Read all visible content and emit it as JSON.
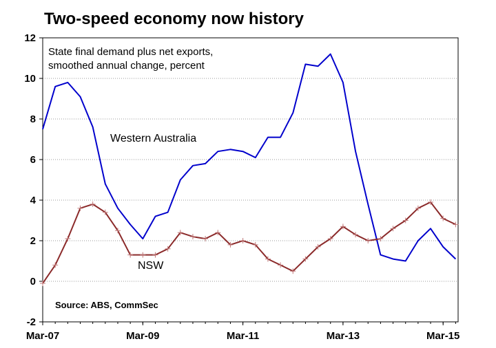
{
  "chart_data": {
    "type": "line",
    "title": "Two-speed economy now history",
    "subtitle_lines": [
      "State final demand plus net exports,",
      "smoothed annual change, percent"
    ],
    "source": "Source: ABS, CommSec",
    "ylim": [
      -2,
      12
    ],
    "yticks": [
      -2,
      0,
      2,
      4,
      6,
      8,
      10,
      12
    ],
    "xlim": [
      2007.0,
      2015.3
    ],
    "xticks": [
      {
        "label": "Mar-07",
        "value": 2007.0
      },
      {
        "label": "Mar-09",
        "value": 2009.0
      },
      {
        "label": "Mar-11",
        "value": 2011.0
      },
      {
        "label": "Mar-13",
        "value": 2013.0
      },
      {
        "label": "Mar-15",
        "value": 2015.0
      }
    ],
    "grid": true,
    "series": [
      {
        "name": "Western Australia",
        "color": "#0000cc",
        "markers": false,
        "x": [
          2007.0,
          2007.25,
          2007.5,
          2007.75,
          2008.0,
          2008.25,
          2008.5,
          2008.75,
          2009.0,
          2009.25,
          2009.5,
          2009.75,
          2010.0,
          2010.25,
          2010.5,
          2010.75,
          2011.0,
          2011.25,
          2011.5,
          2011.75,
          2012.0,
          2012.25,
          2012.5,
          2012.75,
          2013.0,
          2013.25,
          2013.5,
          2013.75,
          2014.0,
          2014.25,
          2014.5,
          2014.75,
          2015.0,
          2015.25
        ],
        "values": [
          7.5,
          9.6,
          9.8,
          9.1,
          7.6,
          4.8,
          3.6,
          2.8,
          2.1,
          3.2,
          3.4,
          5.0,
          5.7,
          5.8,
          6.4,
          6.5,
          6.4,
          6.1,
          7.1,
          7.1,
          8.3,
          10.7,
          10.6,
          11.2,
          9.8,
          6.4,
          3.8,
          1.3,
          1.1,
          1.0,
          2.0,
          2.6,
          1.7,
          1.1
        ]
      },
      {
        "name": "NSW",
        "color": "#8b2a2a",
        "markers": true,
        "x": [
          2007.0,
          2007.25,
          2007.5,
          2007.75,
          2008.0,
          2008.25,
          2008.5,
          2008.75,
          2009.0,
          2009.25,
          2009.5,
          2009.75,
          2010.0,
          2010.25,
          2010.5,
          2010.75,
          2011.0,
          2011.25,
          2011.5,
          2011.75,
          2012.0,
          2012.25,
          2012.5,
          2012.75,
          2013.0,
          2013.25,
          2013.5,
          2013.75,
          2014.0,
          2014.25,
          2014.5,
          2014.75,
          2015.0,
          2015.25
        ],
        "values": [
          -0.1,
          0.8,
          2.1,
          3.6,
          3.8,
          3.4,
          2.5,
          1.3,
          1.3,
          1.3,
          1.6,
          2.4,
          2.2,
          2.1,
          2.4,
          1.8,
          2.0,
          1.8,
          1.1,
          0.8,
          0.5,
          1.1,
          1.7,
          2.1,
          2.7,
          2.3,
          2.0,
          2.1,
          2.6,
          3.0,
          3.6,
          3.9,
          3.1,
          2.8
        ]
      }
    ]
  }
}
